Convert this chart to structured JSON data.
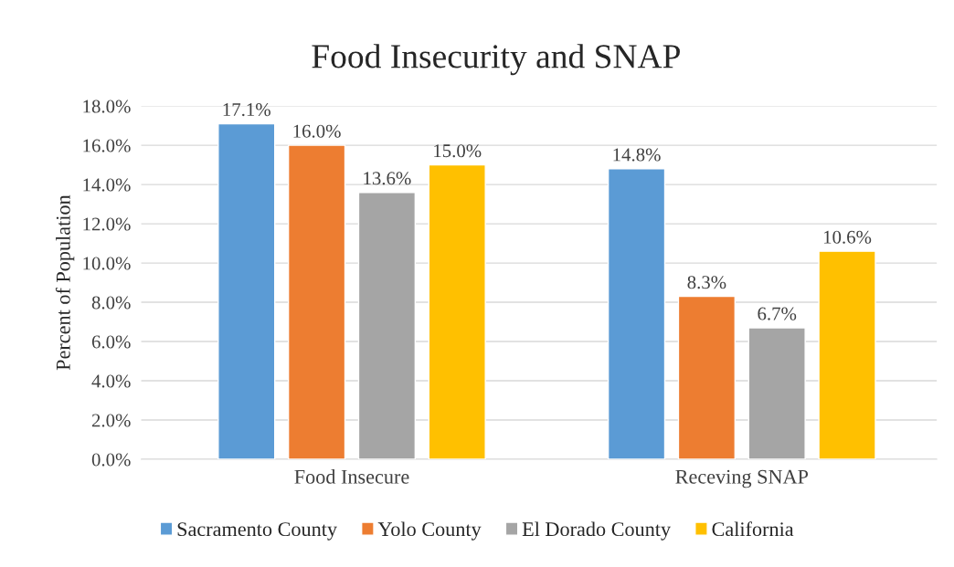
{
  "chart_data": {
    "type": "bar",
    "title": "Food Insecurity and SNAP",
    "ylabel": "Percent of Population",
    "categories": [
      "Food Insecure",
      "Receving SNAP"
    ],
    "series": [
      {
        "name": "Sacramento County",
        "color": "#5b9bd5",
        "values": [
          17.1,
          14.8
        ],
        "value_labels": [
          "17.1%",
          "14.8%"
        ]
      },
      {
        "name": "Yolo County",
        "color": "#ed7d31",
        "values": [
          16.0,
          8.3
        ],
        "value_labels": [
          "16.0%",
          "8.3%"
        ]
      },
      {
        "name": "El Dorado County",
        "color": "#a5a5a5",
        "values": [
          13.6,
          6.7
        ],
        "value_labels": [
          "13.6%",
          "6.7%"
        ]
      },
      {
        "name": "California",
        "color": "#ffc000",
        "values": [
          15.0,
          10.6
        ],
        "value_labels": [
          "15.0%",
          "10.6%"
        ]
      }
    ],
    "ylim": [
      0,
      18
    ],
    "yticks": [
      {
        "value": 0,
        "label": "0.0%"
      },
      {
        "value": 2,
        "label": "2.0%"
      },
      {
        "value": 4,
        "label": "4.0%"
      },
      {
        "value": 6,
        "label": "6.0%"
      },
      {
        "value": 8,
        "label": "8.0%"
      },
      {
        "value": 10,
        "label": "10.0%"
      },
      {
        "value": 12,
        "label": "12.0%"
      },
      {
        "value": 14,
        "label": "14.0%"
      },
      {
        "value": 16,
        "label": "16.0%"
      },
      {
        "value": 18,
        "label": "18.0%"
      }
    ],
    "grid": "y",
    "legend": "bottom"
  }
}
